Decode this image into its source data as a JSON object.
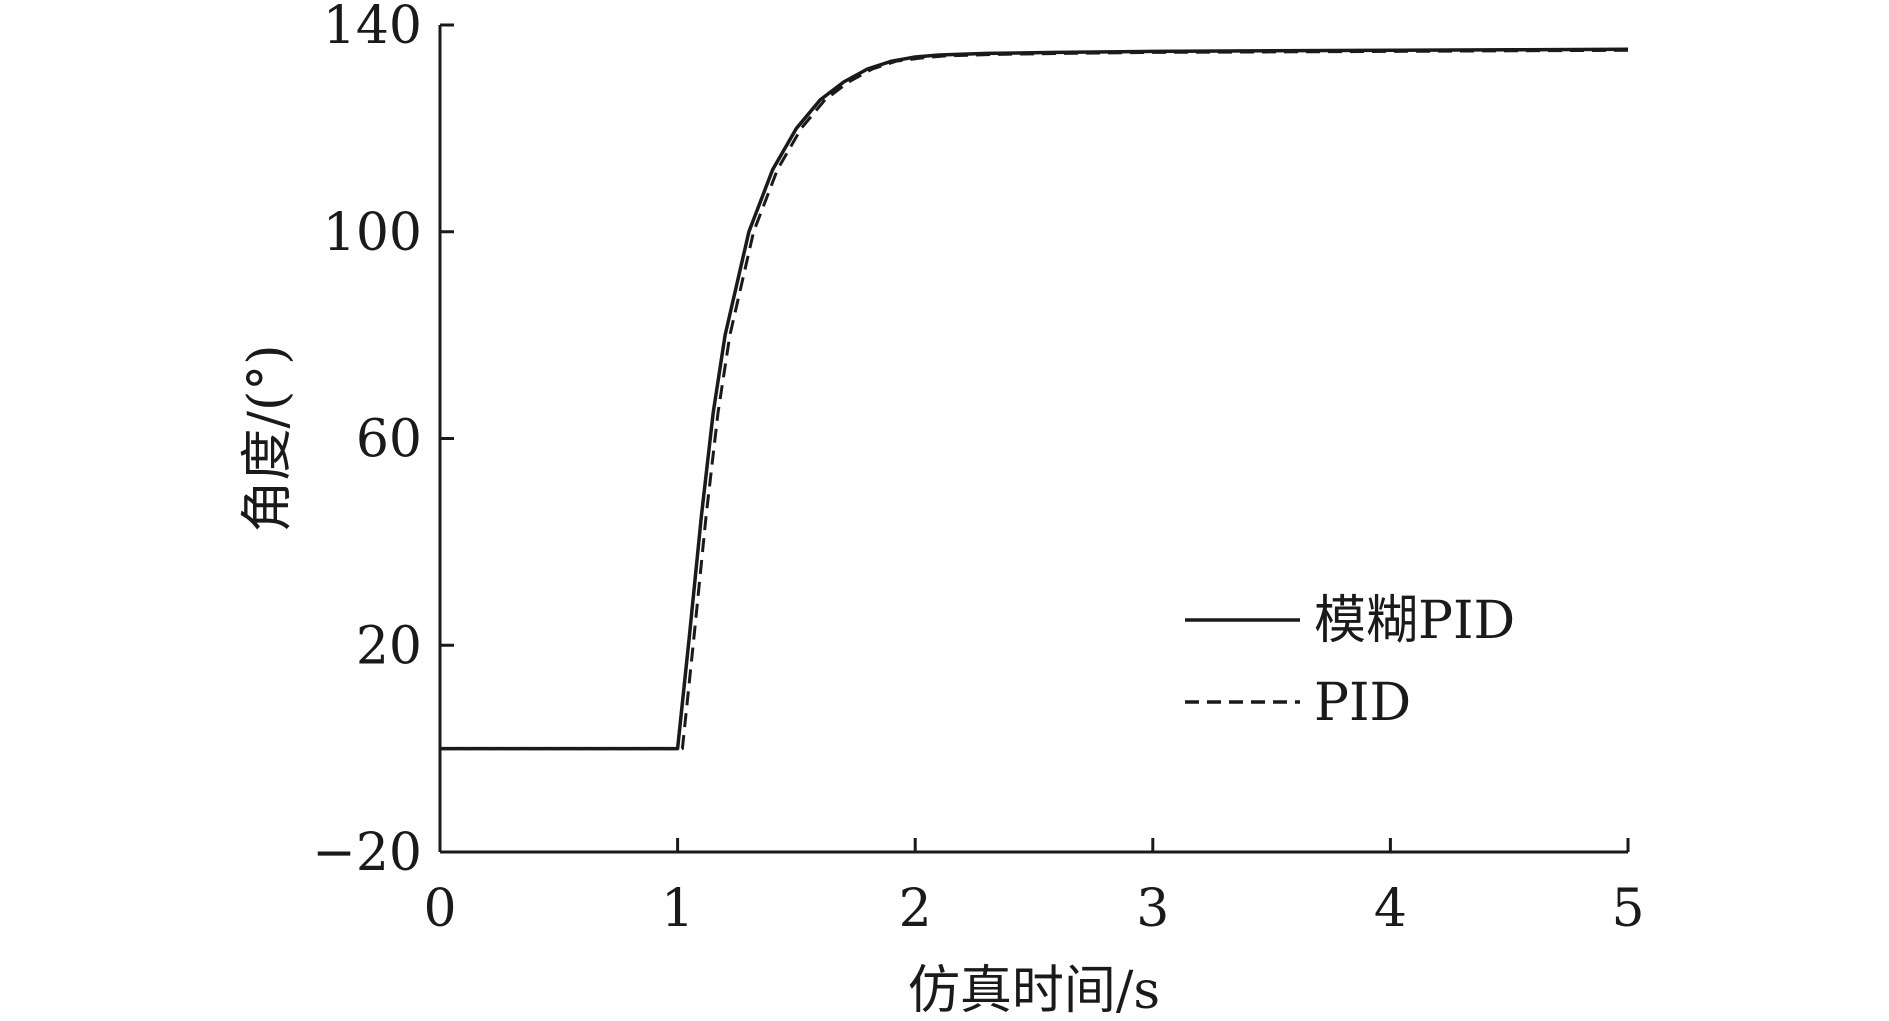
{
  "chart_data": {
    "type": "line",
    "xlabel": "仿真时间/s",
    "ylabel": "角度/(°)",
    "xlim": [
      0,
      5
    ],
    "ylim": [
      -20,
      140
    ],
    "xticks": [
      0,
      1,
      2,
      3,
      4,
      5
    ],
    "xtick_labels": [
      "0",
      "1",
      "2",
      "3",
      "4",
      "5"
    ],
    "yticks": [
      -20,
      20,
      60,
      100,
      140
    ],
    "ytick_labels": [
      "−20",
      "20",
      "60",
      "100",
      "140"
    ],
    "grid": false,
    "legend_position": "lower-right",
    "series": [
      {
        "name": "模糊PID",
        "style": "solid",
        "color": "#1a1a1a",
        "x": [
          0,
          0.5,
          0.99,
          1.0,
          1.05,
          1.1,
          1.15,
          1.2,
          1.3,
          1.4,
          1.5,
          1.6,
          1.7,
          1.8,
          1.9,
          2.0,
          2.1,
          2.3,
          2.6,
          3.0,
          3.5,
          4.0,
          4.5,
          5.0
        ],
        "y": [
          0,
          0,
          0,
          0,
          22,
          45,
          65,
          80,
          100,
          112,
          120,
          125.5,
          129,
          131.5,
          133,
          133.8,
          134.2,
          134.5,
          134.7,
          134.9,
          135.0,
          135.1,
          135.2,
          135.3
        ]
      },
      {
        "name": "PID",
        "style": "dashed",
        "color": "#1a1a1a",
        "x": [
          0,
          0.5,
          0.99,
          1.02,
          1.07,
          1.12,
          1.17,
          1.22,
          1.32,
          1.42,
          1.52,
          1.62,
          1.72,
          1.82,
          1.92,
          2.02,
          2.12,
          2.32,
          2.62,
          3.0,
          3.5,
          4.0,
          4.5,
          5.0
        ],
        "y": [
          0,
          0,
          0,
          0,
          22,
          45,
          65,
          80,
          100,
          112,
          120,
          125.5,
          129,
          131.5,
          133,
          133.6,
          134.0,
          134.3,
          134.5,
          134.7,
          134.8,
          134.9,
          135.0,
          135.1
        ]
      }
    ]
  }
}
